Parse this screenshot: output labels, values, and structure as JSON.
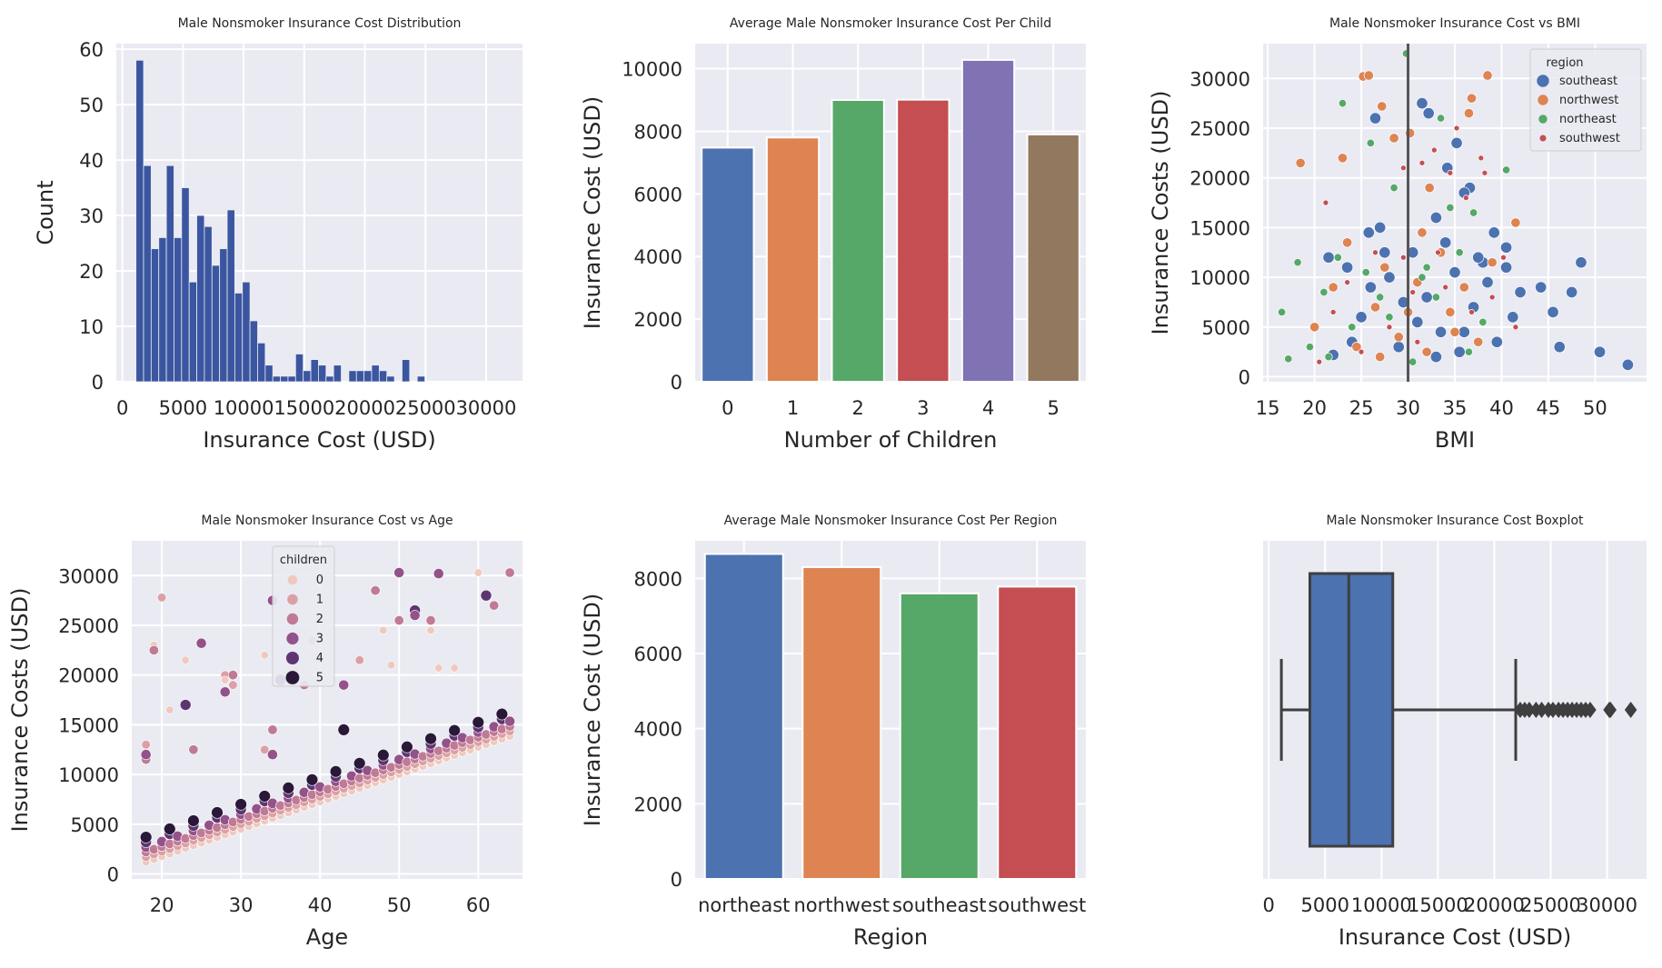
{
  "colors": {
    "panel_bg": "#EAEAF2",
    "grid": "#FFFFFF",
    "hist": "#3B56A0",
    "deep": [
      "#4C72B0",
      "#DD8452",
      "#55A868",
      "#C44E52",
      "#8172B3",
      "#937860"
    ],
    "children_palette": [
      "#EFC9BD",
      "#DBA0A6",
      "#C07A95",
      "#93528A",
      "#5E3572",
      "#2A1838"
    ],
    "box_line": "#3F3F3F"
  },
  "chart_data": [
    {
      "type": "histogram",
      "title": "Male Nonsmoker Insurance Cost Distribution",
      "xlabel": "Insurance Cost (USD)",
      "ylabel": "Count",
      "xlim": [
        -500,
        33000
      ],
      "ylim": [
        0,
        61
      ],
      "xticks": [
        0,
        5000,
        10000,
        15000,
        20000,
        25000,
        30000
      ],
      "xtick_labels": [
        "0",
        "5000",
        "10000",
        "15000",
        "20000",
        "25000",
        "30000"
      ],
      "yticks": [
        0,
        10,
        20,
        30,
        40,
        50,
        60
      ],
      "ytick_labels": [
        "0",
        "10",
        "20",
        "30",
        "40",
        "50",
        "60"
      ],
      "bin_start": 1121,
      "bin_width": 627,
      "counts": [
        58,
        39,
        24,
        26,
        39,
        26,
        35,
        18,
        30,
        28,
        21,
        24,
        31,
        16,
        18,
        11,
        7,
        3,
        1,
        1,
        1,
        5,
        2,
        4,
        3,
        1,
        3,
        0,
        2,
        2,
        2,
        3,
        2,
        1,
        0,
        4,
        0,
        1
      ]
    },
    {
      "type": "bar",
      "title": "Average Male Nonsmoker Insurance Cost Per Child",
      "xlabel": "Number of Children",
      "ylabel": "Insurance Cost (USD)",
      "categories": [
        "0",
        "1",
        "2",
        "3",
        "4",
        "5"
      ],
      "values": [
        7478,
        7802,
        9000,
        9010,
        10280,
        7900
      ],
      "ylim": [
        0,
        10800
      ],
      "yticks": [
        0,
        2000,
        4000,
        6000,
        8000,
        10000
      ],
      "ytick_labels": [
        "0",
        "2000",
        "4000",
        "6000",
        "8000",
        "10000"
      ]
    },
    {
      "type": "scatter",
      "title": "Male Nonsmoker Insurance Cost vs BMI",
      "xlabel": "BMI",
      "ylabel": "Insurance Costs (USD)",
      "xlim": [
        14.5,
        55.5
      ],
      "ylim": [
        -500,
        33500
      ],
      "xticks": [
        15,
        20,
        25,
        30,
        35,
        40,
        45,
        50
      ],
      "xtick_labels": [
        "15",
        "20",
        "25",
        "30",
        "35",
        "40",
        "45",
        "50"
      ],
      "yticks": [
        0,
        5000,
        10000,
        15000,
        20000,
        25000,
        30000
      ],
      "ytick_labels": [
        "0",
        "5000",
        "10000",
        "15000",
        "20000",
        "25000",
        "30000"
      ],
      "vline_x": 30,
      "legend": {
        "title": "region",
        "entries": [
          "southeast",
          "northwest",
          "northeast",
          "southwest"
        ],
        "position": "top-right"
      },
      "series": [
        {
          "name": "southeast",
          "points": [
            [
              21.5,
              12000
            ],
            [
              23.5,
              11000
            ],
            [
              25.8,
              14500
            ],
            [
              26.5,
              26000
            ],
            [
              27,
              15000
            ],
            [
              31.5,
              27500
            ],
            [
              32.2,
              26500
            ],
            [
              33,
              16000
            ],
            [
              34.2,
              21000
            ],
            [
              35.2,
              23500
            ],
            [
              36.6,
              19000
            ],
            [
              38,
              11500
            ],
            [
              39.2,
              14500
            ],
            [
              40.5,
              11000
            ],
            [
              41.2,
              6000
            ],
            [
              44.2,
              9000
            ],
            [
              45.5,
              6500
            ],
            [
              46.2,
              3000
            ],
            [
              47.5,
              8500
            ],
            [
              48.5,
              11500
            ],
            [
              50.5,
              2500
            ],
            [
              53.5,
              1200
            ],
            [
              22,
              2200
            ],
            [
              24,
              3500
            ],
            [
              25,
              6000
            ],
            [
              26,
              9000
            ],
            [
              28,
              10000
            ],
            [
              29,
              3000
            ],
            [
              30.5,
              12500
            ],
            [
              31,
              5500
            ],
            [
              32,
              8000
            ],
            [
              33,
              2000
            ],
            [
              34,
              13500
            ],
            [
              35,
              10500
            ],
            [
              36,
              4500
            ],
            [
              37,
              7000
            ],
            [
              38.5,
              9500
            ],
            [
              39.5,
              3500
            ],
            [
              40.5,
              13000
            ],
            [
              42,
              8500
            ],
            [
              27.5,
              12500
            ],
            [
              29.5,
              7500
            ],
            [
              33.5,
              4500
            ],
            [
              35.5,
              2500
            ],
            [
              37.5,
              12000
            ],
            [
              36,
              18500
            ]
          ]
        },
        {
          "name": "northwest",
          "points": [
            [
              18.5,
              21500
            ],
            [
              23,
              22000
            ],
            [
              25.2,
              30200
            ],
            [
              25.8,
              30300
            ],
            [
              27.2,
              27200
            ],
            [
              28.5,
              24000
            ],
            [
              30.2,
              24500
            ],
            [
              32.3,
              19000
            ],
            [
              36.5,
              26500
            ],
            [
              36.8,
              28000
            ],
            [
              38.5,
              30300
            ],
            [
              41.5,
              15500
            ],
            [
              20,
              5000
            ],
            [
              22,
              9000
            ],
            [
              23.5,
              13500
            ],
            [
              24.5,
              3000
            ],
            [
              26.5,
              7000
            ],
            [
              27.5,
              11000
            ],
            [
              29,
              4000
            ],
            [
              31,
              9500
            ],
            [
              32,
              2500
            ],
            [
              33.5,
              12500
            ],
            [
              34.5,
              6500
            ],
            [
              36,
              9000
            ],
            [
              37.5,
              3500
            ],
            [
              39,
              11500
            ],
            [
              27,
              2000
            ],
            [
              30,
              6500
            ],
            [
              31.5,
              14500
            ],
            [
              35,
              4500
            ]
          ]
        },
        {
          "name": "northeast",
          "points": [
            [
              17.2,
              1800
            ],
            [
              18.2,
              11500
            ],
            [
              23,
              27500
            ],
            [
              26,
              23500
            ],
            [
              28.5,
              19000
            ],
            [
              29.8,
              32500
            ],
            [
              31.5,
              10000
            ],
            [
              33.5,
              26000
            ],
            [
              34.5,
              17000
            ],
            [
              37,
              16500
            ],
            [
              40.5,
              20800
            ],
            [
              16.5,
              6500
            ],
            [
              19.5,
              3000
            ],
            [
              21,
              8500
            ],
            [
              22.5,
              12000
            ],
            [
              24,
              5000
            ],
            [
              25.5,
              10500
            ],
            [
              28,
              6000
            ],
            [
              30.5,
              1500
            ],
            [
              33,
              8000
            ],
            [
              35.5,
              12500
            ],
            [
              38,
              5500
            ],
            [
              21.5,
              2000
            ],
            [
              27,
              8000
            ],
            [
              32,
              11000
            ],
            [
              36.5,
              2500
            ]
          ]
        },
        {
          "name": "southwest",
          "points": [
            [
              21.2,
              17500
            ],
            [
              29.5,
              21000
            ],
            [
              31.5,
              21500
            ],
            [
              32.8,
              22800
            ],
            [
              34.5,
              20500
            ],
            [
              35.2,
              25000
            ],
            [
              36.2,
              18000
            ],
            [
              37.8,
              22000
            ],
            [
              38.2,
              20500
            ],
            [
              29.5,
              12000
            ],
            [
              33.2,
              12500
            ],
            [
              40.2,
              12000
            ],
            [
              20.5,
              1500
            ],
            [
              22,
              6500
            ],
            [
              23.5,
              9500
            ],
            [
              25,
              2500
            ],
            [
              26.5,
              12500
            ],
            [
              28,
              5000
            ],
            [
              31,
              3500
            ],
            [
              34,
              9000
            ],
            [
              36.8,
              6500
            ],
            [
              39,
              8000
            ],
            [
              41.5,
              5000
            ],
            [
              30.5,
              8500
            ]
          ]
        }
      ]
    },
    {
      "type": "scatter",
      "title": "Male Nonsmoker Insurance Cost vs Age",
      "xlabel": "Age",
      "ylabel": "Insurance Costs (USD)",
      "xlim": [
        16.2,
        65.6
      ],
      "ylim": [
        -500,
        33500
      ],
      "xticks": [
        20,
        30,
        40,
        50,
        60
      ],
      "xtick_labels": [
        "20",
        "30",
        "40",
        "50",
        "60"
      ],
      "yticks": [
        0,
        5000,
        10000,
        15000,
        20000,
        25000,
        30000
      ],
      "ytick_labels": [
        "0",
        "5000",
        "10000",
        "15000",
        "20000",
        "25000",
        "30000"
      ],
      "legend": {
        "title": "children",
        "entries": [
          "0",
          "1",
          "2",
          "3",
          "4",
          "5"
        ],
        "position": "upper-center"
      },
      "outliers": [
        [
          18,
          13000,
          1
        ],
        [
          18,
          11500,
          2
        ],
        [
          18,
          12000,
          3
        ],
        [
          19,
          23000,
          0
        ],
        [
          19,
          22500,
          2
        ],
        [
          20,
          27800,
          1
        ],
        [
          21,
          16500,
          0
        ],
        [
          23,
          21500,
          0
        ],
        [
          23,
          17000,
          4
        ],
        [
          24,
          12500,
          2
        ],
        [
          25,
          23200,
          3
        ],
        [
          28,
          20000,
          1
        ],
        [
          28,
          19500,
          0
        ],
        [
          29,
          19000,
          1
        ],
        [
          28,
          18300,
          3
        ],
        [
          29,
          20000,
          2
        ],
        [
          33,
          22000,
          0
        ],
        [
          33,
          12500,
          1
        ],
        [
          34,
          27500,
          3
        ],
        [
          34,
          14500,
          2
        ],
        [
          34,
          12000,
          3
        ],
        [
          35,
          19500,
          4
        ],
        [
          37,
          20500,
          0
        ],
        [
          38,
          19000,
          2
        ],
        [
          39,
          23500,
          1
        ],
        [
          43,
          14500,
          5
        ],
        [
          43,
          19000,
          3
        ],
        [
          45,
          21500,
          1
        ],
        [
          47,
          28500,
          2
        ],
        [
          48,
          24500,
          0
        ],
        [
          49,
          21000,
          0
        ],
        [
          50,
          30300,
          3
        ],
        [
          50,
          25500,
          2
        ],
        [
          52,
          26500,
          4
        ],
        [
          52,
          26000,
          3
        ],
        [
          54,
          25500,
          2
        ],
        [
          54,
          24500,
          0
        ],
        [
          55,
          30200,
          3
        ],
        [
          55,
          20700,
          0
        ],
        [
          57,
          20700,
          0
        ],
        [
          60,
          30300,
          0
        ],
        [
          61,
          28000,
          4
        ],
        [
          62,
          27000,
          2
        ],
        [
          64,
          30300,
          2
        ]
      ]
    },
    {
      "type": "bar",
      "title": "Average Male Nonsmoker Insurance Cost Per Region",
      "xlabel": "Region",
      "ylabel": "Insurance Cost (USD)",
      "categories": [
        "northeast",
        "northwest",
        "southeast",
        "southwest"
      ],
      "values": [
        8650,
        8300,
        7600,
        7780
      ],
      "ylim": [
        0,
        9000
      ],
      "yticks": [
        0,
        2000,
        4000,
        6000,
        8000
      ],
      "ytick_labels": [
        "0",
        "2000",
        "4000",
        "6000",
        "8000"
      ]
    },
    {
      "type": "boxplot",
      "title": "Male Nonsmoker Insurance Cost Boxplot",
      "xlabel": "Insurance Cost (USD)",
      "xlim": [
        -500,
        33500
      ],
      "xticks": [
        0,
        5000,
        10000,
        15000,
        20000,
        25000,
        30000
      ],
      "xtick_labels": [
        "0",
        "5000",
        "10000",
        "15000",
        "20000",
        "25000",
        "30000"
      ],
      "whisker_low": 1121,
      "q1": 3650,
      "median": 7100,
      "q3": 11000,
      "whisker_high": 21900,
      "fliers": [
        22300,
        22700,
        23100,
        23700,
        24200,
        24800,
        25200,
        25700,
        26100,
        26500,
        26900,
        27300,
        27700,
        28100,
        28500,
        30200,
        30300,
        32100
      ]
    }
  ]
}
